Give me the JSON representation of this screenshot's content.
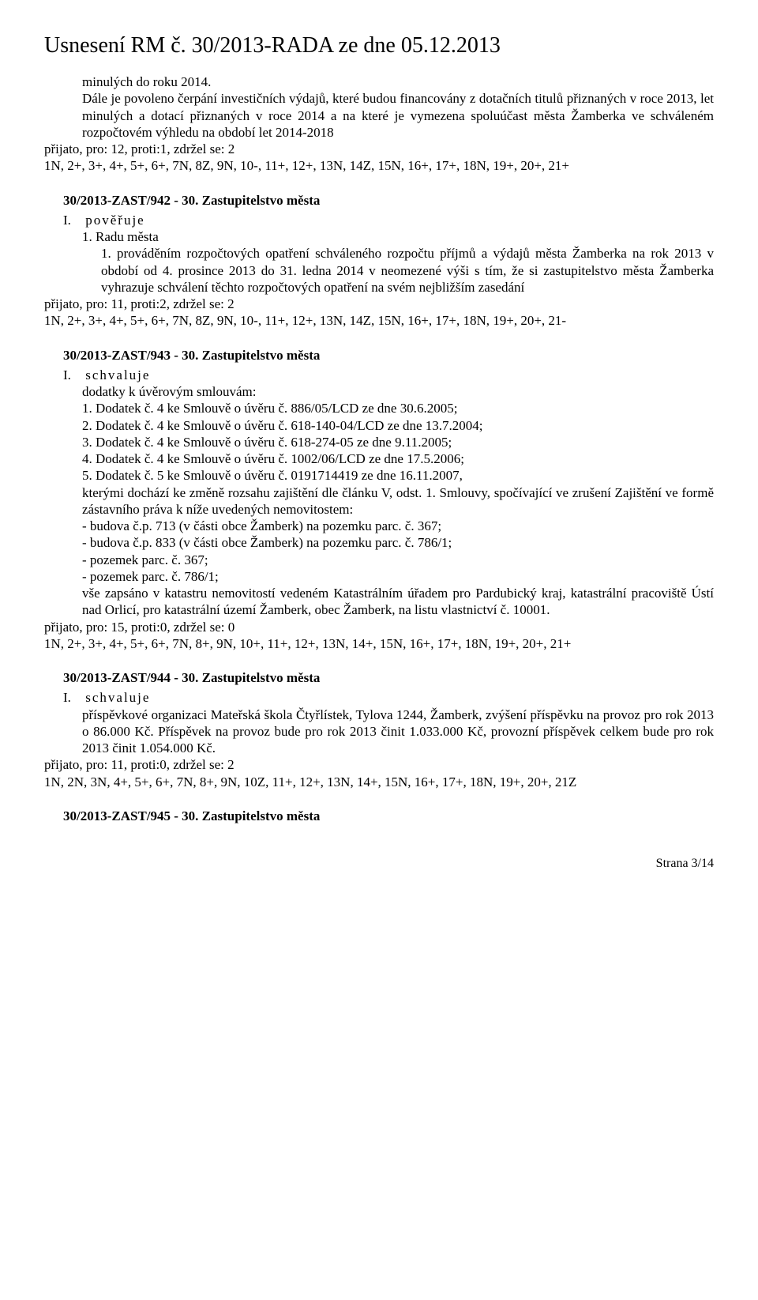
{
  "pageTitle": "Usnesení RM č. 30/2013-RADA ze dne 05.12.2013",
  "intro": {
    "line1": "minulých do roku 2014.",
    "para": "Dále je povoleno čerpání investičních výdajů, které budou financovány z dotačních titulů přiznaných v roce 2013, let minulých a dotací přiznaných v roce 2014 a na které je vymezena spoluúčast města Žamberka ve schváleném rozpočtovém výhledu na období let 2014-2018",
    "vote1": "přijato,  pro: 12, proti:1, zdržel se: 2",
    "vote2": "1N, 2+, 3+, 4+, 5+, 6+, 7N, 8Z, 9N, 10-, 11+, 12+, 13N, 14Z, 15N, 16+, 17+, 18N, 19+, 20+, 21+"
  },
  "s942": {
    "heading": "30/2013-ZAST/942 - 30. Zastupitelstvo města",
    "romanLabel": "I.",
    "romanWord": "pověřuje",
    "item1": "1. Radu města",
    "body": "1. prováděním rozpočtových opatření schváleného rozpočtu příjmů a výdajů města Žamberka na rok 2013 v období od 4. prosince 2013 do 31. ledna 2014 v neomezené výši s tím, že si zastupitelstvo města Žamberka vyhrazuje schválení těchto rozpočtových opatření  na svém nejbližším zasedání",
    "vote1": "přijato,  pro: 11, proti:2, zdržel se: 2",
    "vote2": "1N, 2+, 3+, 4+, 5+, 6+, 7N, 8Z, 9N, 10-, 11+, 12+, 13N, 14Z, 15N, 16+, 17+, 18N, 19+, 20+, 21-"
  },
  "s943": {
    "heading": "30/2013-ZAST/943 - 30. Zastupitelstvo města",
    "romanLabel": "I.",
    "romanWord": "schvaluje",
    "lead": "dodatky k úvěrovým smlouvám:",
    "items": [
      "1. Dodatek č. 4 ke Smlouvě o úvěru č. 886/05/LCD ze dne 30.6.2005;",
      "2. Dodatek č. 4 ke Smlouvě o úvěru č. 618-140-04/LCD ze dne 13.7.2004;",
      "3. Dodatek č. 4 ke Smlouvě o úvěru č. 618-274-05 ze dne 9.11.2005;",
      "4. Dodatek č. 4 ke Smlouvě o úvěru č. 1002/06/LCD ze dne 17.5.2006;",
      "5. Dodatek č. 5 ke Smlouvě o úvěru č. 0191714419 ze dne 16.11.2007,"
    ],
    "para1": "kterými dochází ke změně rozsahu zajištění dle článku V, odst. 1. Smlouvy, spočívající ve zrušení Zajištění ve formě zástavního práva k níže uvedených nemovitostem:",
    "bullets": [
      "- budova č.p. 713 (v části obce Žamberk) na pozemku parc. č. 367;",
      "- budova č.p. 833 (v části obce Žamberk) na pozemku parc. č. 786/1;",
      "- pozemek parc. č. 367;",
      "- pozemek parc. č. 786/1;"
    ],
    "para2": "vše zapsáno v katastru nemovitostí vedeném Katastrálním úřadem pro Pardubický kraj, katastrální pracoviště Ústí nad Orlicí, pro katastrální území Žamberk, obec Žamberk, na listu vlastnictví č. 10001.",
    "vote1": "přijato,  pro: 15, proti:0, zdržel se: 0",
    "vote2": "1N, 2+, 3+, 4+, 5+, 6+, 7N, 8+, 9N, 10+, 11+, 12+, 13N, 14+, 15N, 16+, 17+, 18N, 19+, 20+, 21+"
  },
  "s944": {
    "heading": "30/2013-ZAST/944 - 30. Zastupitelstvo města",
    "romanLabel": "I.",
    "romanWord": "schvaluje",
    "para": "příspěvkové organizaci Mateřská škola Čtyřlístek, Tylova 1244, Žamberk, zvýšení příspěvku na provoz pro rok 2013 o 86.000 Kč. Příspěvek na provoz bude pro rok 2013 činit 1.033.000 Kč, provozní příspěvek celkem bude pro rok 2013 činit 1.054.000 Kč.",
    "vote1": "přijato,  pro: 11, proti:0, zdržel se: 2",
    "vote2": "1N, 2N, 3N, 4+, 5+, 6+, 7N, 8+, 9N, 10Z, 11+, 12+, 13N, 14+, 15N, 16+, 17+, 18N, 19+, 20+, 21Z"
  },
  "s945": {
    "heading": "30/2013-ZAST/945 - 30. Zastupitelstvo města"
  },
  "footer": "Strana 3/14"
}
